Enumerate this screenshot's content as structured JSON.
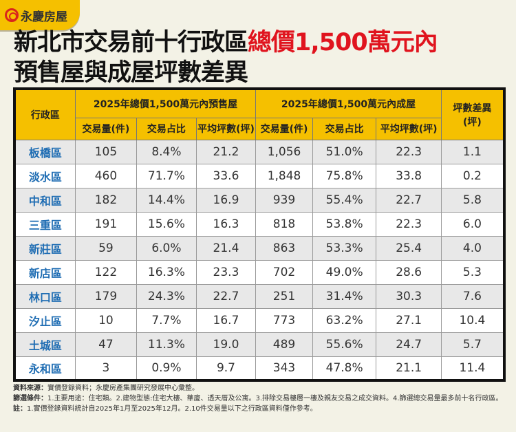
{
  "brand": {
    "name": "永慶房屋",
    "color": "#f5c000"
  },
  "title": {
    "line1_black": "新北市交易前十行政區",
    "line1_red": "總價1,500萬元內",
    "line2": "預售屋與成屋坪數差異"
  },
  "table": {
    "district_header": "行政區",
    "group_presale": "2025年總價1,500萬元內預售屋",
    "group_existing": "2025年總價1,500萬元內成屋",
    "diff_header": "坪數差異(坪)",
    "sub_headers": [
      "交易量(件)",
      "交易占比",
      "平均坪數(坪)",
      "交易量(件)",
      "交易占比",
      "平均坪數(坪)"
    ],
    "rows": [
      [
        "板橋區",
        "105",
        "8.4%",
        "21.2",
        "1,056",
        "51.0%",
        "22.3",
        "1.1"
      ],
      [
        "淡水區",
        "460",
        "71.7%",
        "33.6",
        "1,848",
        "75.8%",
        "33.8",
        "0.2"
      ],
      [
        "中和區",
        "182",
        "14.4%",
        "16.9",
        "939",
        "55.4%",
        "22.7",
        "5.8"
      ],
      [
        "三重區",
        "191",
        "15.6%",
        "16.3",
        "818",
        "53.8%",
        "22.3",
        "6.0"
      ],
      [
        "新莊區",
        "59",
        "6.0%",
        "21.4",
        "863",
        "53.3%",
        "25.4",
        "4.0"
      ],
      [
        "新店區",
        "122",
        "16.3%",
        "23.3",
        "702",
        "49.0%",
        "28.6",
        "5.3"
      ],
      [
        "林口區",
        "179",
        "24.3%",
        "22.7",
        "251",
        "31.4%",
        "30.3",
        "7.6"
      ],
      [
        "汐止區",
        "10",
        "7.7%",
        "16.7",
        "773",
        "63.2%",
        "27.1",
        "10.4"
      ],
      [
        "土城區",
        "47",
        "11.3%",
        "19.0",
        "489",
        "55.6%",
        "24.7",
        "5.7"
      ],
      [
        "永和區",
        "3",
        "0.9%",
        "9.7",
        "343",
        "47.8%",
        "21.1",
        "11.4"
      ]
    ]
  },
  "footer": {
    "source_label": "資料來源：",
    "source": "實價登錄資料；永慶房產集團研究發展中心彙整。",
    "filter_label": "篩選條件：",
    "filter": "1.主要用途：住宅類。2.建物型態:住宅大樓、華廈、透天厝及公寓。3.排除交易樓層一樓及親友交易之成交資料。4.篩選總交易量最多前十名行政區。",
    "note_label": "註：",
    "note": "1.實價登錄資料統計自2025年1月至2025年12月。2.10件交易量以下之行政區資料僅作參考。"
  }
}
